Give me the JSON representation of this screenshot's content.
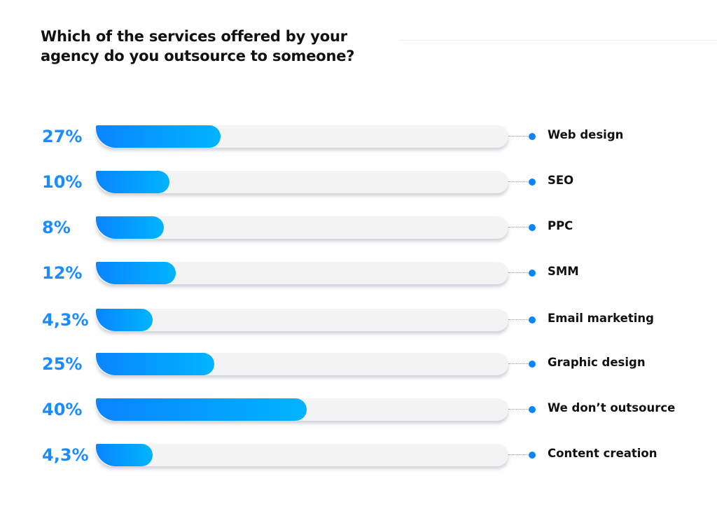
{
  "chart_data": {
    "type": "bar",
    "orientation": "horizontal",
    "title": "Which of the services offered by your agency do you outsource to someone?",
    "title_lines": [
      "Which of the services offered by your",
      "agency do you outsource to someone?"
    ],
    "categories": [
      "Web design",
      "SEO",
      "PPC",
      "SMM",
      "Email marketing",
      "Graphic design",
      "We don’t outsource",
      "Content creation"
    ],
    "values": [
      27,
      10,
      8,
      12,
      4.3,
      25,
      40,
      4.3
    ],
    "value_labels": [
      "27%",
      "10%",
      "8%",
      "12%",
      "4,3%",
      "25%",
      "40%",
      "4,3%"
    ],
    "unit": "%",
    "grid": false,
    "colors": {
      "fill_start": "#0a84ff",
      "fill_end": "#00b4ff",
      "track": "#f3f3f4",
      "value_text": "#1a8cff"
    }
  }
}
